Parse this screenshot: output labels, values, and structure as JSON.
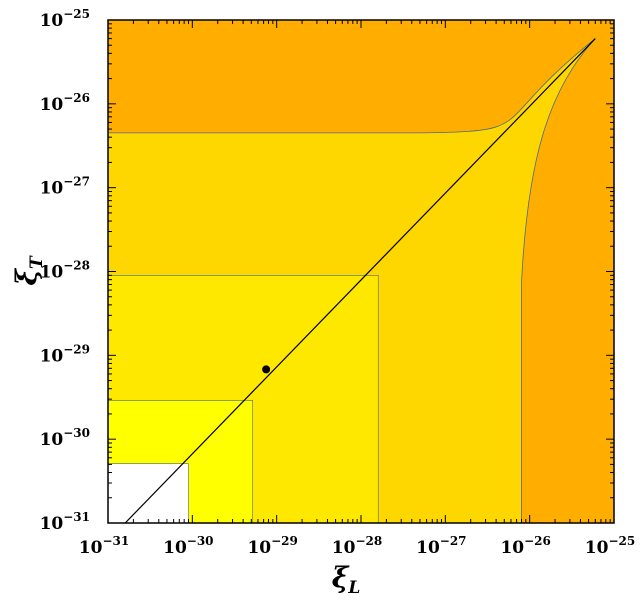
{
  "chart_data": {
    "type": "area",
    "title": "",
    "xlabel": {
      "symbol": "ξ",
      "subscript": "L"
    },
    "ylabel": {
      "symbol": "ξ",
      "subscript": "T"
    },
    "x_scale": "log",
    "y_scale": "log",
    "xlim": [
      1e-31,
      1e-25
    ],
    "ylim": [
      1e-31,
      1e-25
    ],
    "grid": false,
    "ticks": [
      {
        "value": 1e-31,
        "base": "10",
        "exp": "−31"
      },
      {
        "value": 1e-30,
        "base": "10",
        "exp": "−30"
      },
      {
        "value": 1e-29,
        "base": "10",
        "exp": "−29"
      },
      {
        "value": 1e-28,
        "base": "10",
        "exp": "−28"
      },
      {
        "value": 1e-27,
        "base": "10",
        "exp": "−27"
      },
      {
        "value": 1e-26,
        "base": "10",
        "exp": "−26"
      },
      {
        "value": 1e-25,
        "base": "10",
        "exp": "−25"
      }
    ],
    "colors": {
      "outer_region": "#FFAE00",
      "region_1": "#FFD700",
      "region_2": "#FFE800",
      "region_3": "#FFFF00",
      "inner_region": "#FFFFFF",
      "frame": "#000000",
      "diagonal": "#000000",
      "boundary": "#4a6a88"
    },
    "outer_bound": {
      "horizontal_limit_y": 4.5e-27,
      "vertical_limit_x": 8e-27,
      "meets_diagonal_at": 6e-26
    },
    "nested_regions": [
      {
        "name": "region_2",
        "limit_x": 1.6e-28,
        "limit_y": 9e-29
      },
      {
        "name": "region_3",
        "limit_x": 5.2e-30,
        "limit_y": 2.9e-30
      },
      {
        "name": "inner_region",
        "limit_x": 9e-31,
        "limit_y": 5.1e-31
      }
    ],
    "diagonal": {
      "x": [
        1.6e-31,
        6e-26
      ],
      "y": [
        1e-31,
        6e-26
      ]
    },
    "point": {
      "x": 7.5e-30,
      "y": 6.8e-30
    }
  }
}
